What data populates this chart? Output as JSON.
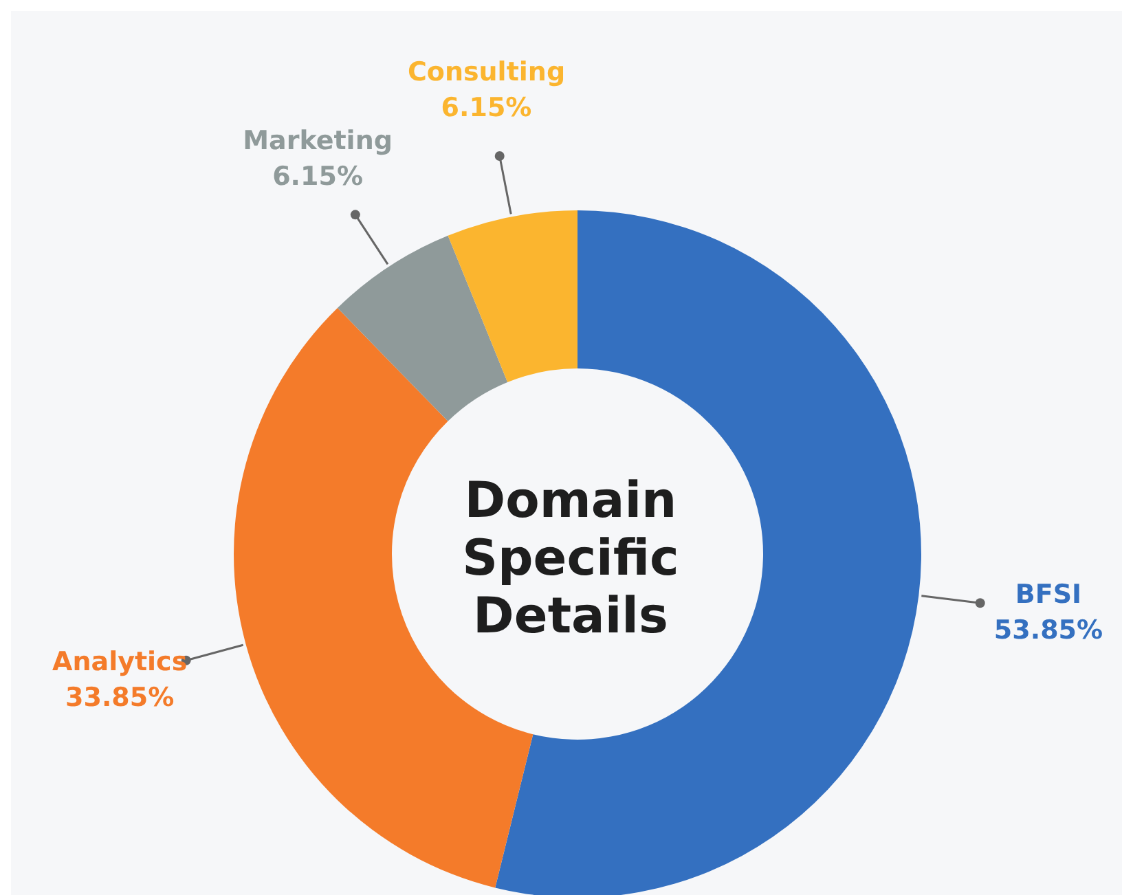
{
  "chart_data": {
    "type": "donut",
    "title": "Domain Specific Details",
    "categories": [
      "BFSI",
      "Analytics",
      "Marketing",
      "Consulting"
    ],
    "values": [
      53.85,
      33.85,
      6.15,
      6.15
    ],
    "colors": [
      "#3470c0",
      "#f47b2a",
      "#8f9a9a",
      "#fbb52f"
    ],
    "value_labels": [
      "53.85%",
      "33.85%",
      "6.15%",
      "6.15%"
    ]
  }
}
